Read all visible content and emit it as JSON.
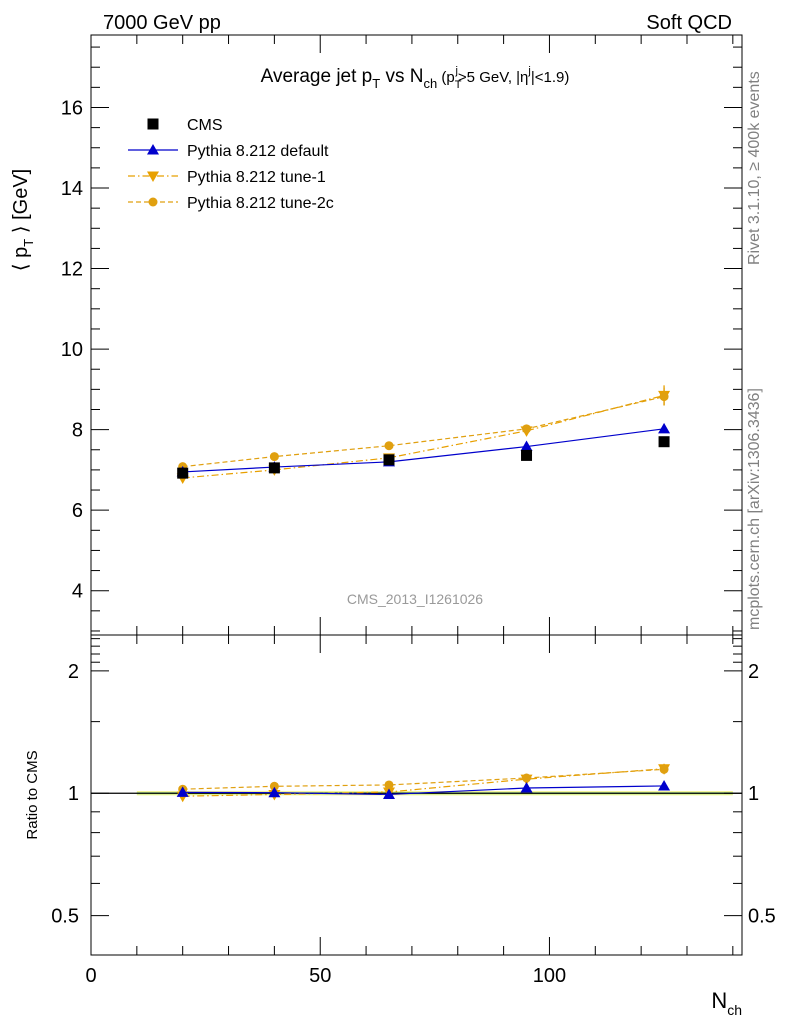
{
  "header": {
    "left": "7000 GeV pp",
    "right": "Soft QCD",
    "analysis_id": "CMS_2013_I1261026",
    "side_rivet": "Rivet 3.1.10, ≥ 400k events",
    "side_mcplots": "mcplots.cern.ch [arXiv:1306.3436]"
  },
  "chart_data": [
    {
      "type": "line",
      "panel": "main",
      "title": "Average jet pT vs Nch (pTj>5 GeV, |ηj|<1.9)",
      "title_parts": {
        "a": "Average jet p",
        "a_sub": "T",
        "b": " vs N",
        "b_sub": "ch",
        "c": " (p",
        "c_sub": "T",
        "c_sup": "j",
        "d": ">5 GeV, |η",
        "d_sup": "j",
        "e": "|<1.9)"
      },
      "ylabel": "⟨ pT ⟩ [GeV]",
      "ylabel_parts": {
        "pre": "⟨ p",
        "sub": "T",
        "post": " ⟩ [GeV]"
      },
      "xlim": [
        0,
        142
      ],
      "ylim": [
        2.9,
        17.8
      ],
      "yticks": [
        "4",
        "6",
        "8",
        "10",
        "12",
        "14",
        "16"
      ],
      "legend_position": "top-left",
      "series": [
        {
          "name": "CMS",
          "color": "#000000",
          "marker": "square",
          "line": "none",
          "x": [
            20,
            40,
            65,
            95,
            125
          ],
          "y": [
            6.92,
            7.05,
            7.25,
            7.36,
            7.7
          ],
          "yerr": [
            0.05,
            0.05,
            0.06,
            0.07,
            0.09
          ]
        },
        {
          "name": "Pythia 8.212 default",
          "color": "#0000cc",
          "marker": "triangle-up",
          "line": "solid",
          "x": [
            20,
            40,
            65,
            95,
            125
          ],
          "y": [
            6.95,
            7.07,
            7.2,
            7.58,
            8.02
          ],
          "yerr": [
            0.02,
            0.02,
            0.03,
            0.04,
            0.06
          ]
        },
        {
          "name": "Pythia 8.212 tune-1",
          "color": "#e8a000",
          "marker": "triangle-down",
          "line": "dashdot",
          "x": [
            20,
            40,
            65,
            95,
            125
          ],
          "y": [
            6.8,
            7.0,
            7.3,
            7.97,
            8.85
          ],
          "yerr": [
            0.03,
            0.03,
            0.04,
            0.06,
            0.25
          ]
        },
        {
          "name": "Pythia 8.212 tune-2c",
          "color": "#e0a010",
          "marker": "circle",
          "line": "dashed",
          "x": [
            20,
            40,
            65,
            95,
            125
          ],
          "y": [
            7.08,
            7.33,
            7.6,
            8.02,
            8.82
          ],
          "yerr": [
            0.03,
            0.03,
            0.04,
            0.05,
            0.22
          ]
        }
      ]
    },
    {
      "type": "line",
      "panel": "ratio",
      "ylabel": "Ratio to CMS",
      "xlabel": "Nch",
      "xlabel_parts": {
        "pre": "N",
        "sub": "ch"
      },
      "xlim": [
        0,
        142
      ],
      "ylim": [
        0.4,
        2.45
      ],
      "log_y": true,
      "yticks": [
        "0.5",
        "1",
        "2"
      ],
      "xticks": [
        "0",
        "50",
        "100"
      ],
      "band": {
        "x": [
          10,
          140
        ],
        "half_width": 0.012
      },
      "series": [
        {
          "name": "Pythia 8.212 default",
          "x": [
            20,
            40,
            65,
            95,
            125
          ],
          "y": [
            1.005,
            1.003,
            0.993,
            1.03,
            1.042
          ]
        },
        {
          "name": "Pythia 8.212 tune-1",
          "x": [
            20,
            40,
            65,
            95,
            125
          ],
          "y": [
            0.983,
            0.993,
            1.007,
            1.083,
            1.149
          ]
        },
        {
          "name": "Pythia 8.212 tune-2c",
          "x": [
            20,
            40,
            65,
            95,
            125
          ],
          "y": [
            1.023,
            1.04,
            1.048,
            1.09,
            1.145
          ]
        }
      ]
    }
  ]
}
